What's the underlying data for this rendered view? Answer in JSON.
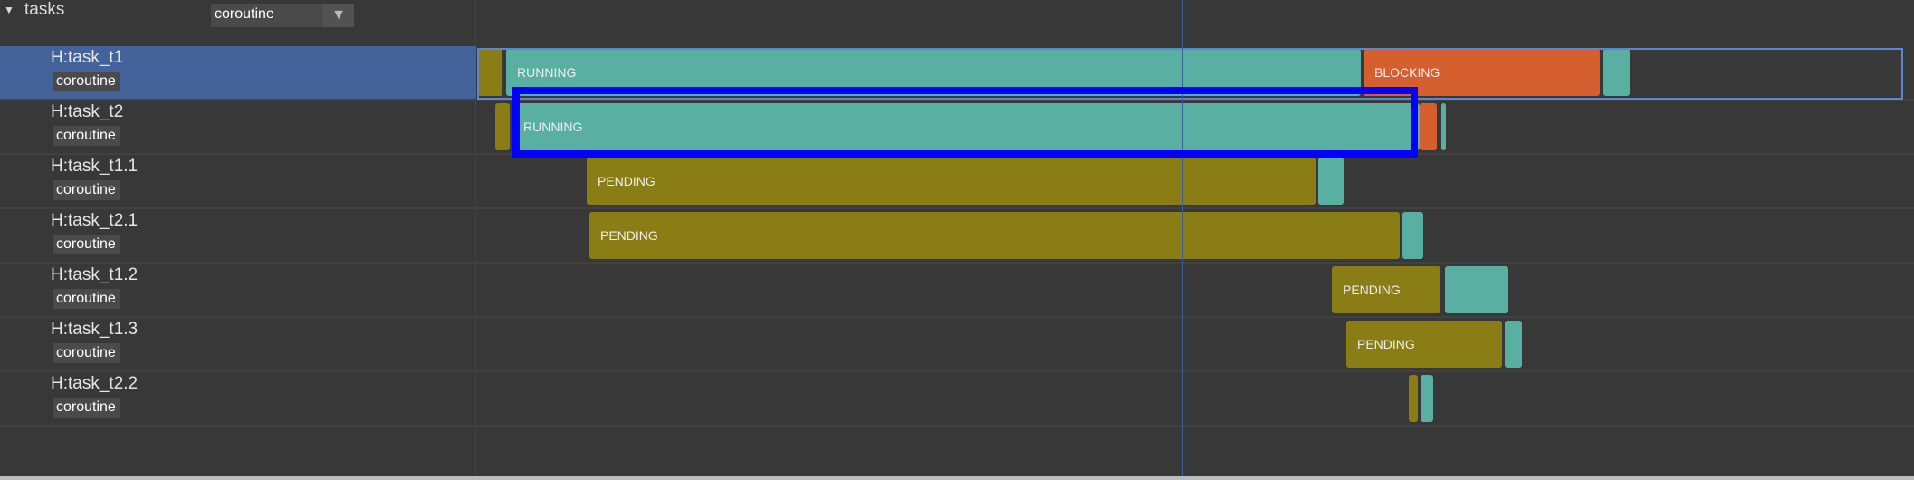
{
  "header": {
    "title": "tasks",
    "collapse_icon": "triangle-down-icon",
    "dropdown_value": "coroutine"
  },
  "colors": {
    "PENDING": "#8b7d16",
    "RUNNING": "#5aafa3",
    "BLOCKING": "#d65f2f",
    "selected_row": "#44639a",
    "highlight_box": "#0000ff",
    "cursor_line": "#3c5f9c"
  },
  "rows": [
    {
      "name": "H:task_t1",
      "tag": "coroutine",
      "selected": true,
      "segments": [
        {
          "state": "PENDING",
          "label": "",
          "x0": 528,
          "x1": 555
        },
        {
          "state": "RUNNING",
          "label": "RUNNING",
          "x0": 559,
          "x1": 1503
        },
        {
          "state": "BLOCKING",
          "label": "BLOCKING",
          "x0": 1506,
          "x1": 1767
        },
        {
          "state": "RUNNING",
          "label": "",
          "x0": 1771,
          "x1": 1800
        }
      ]
    },
    {
      "name": "H:task_t2",
      "tag": "coroutine",
      "segments": [
        {
          "state": "PENDING",
          "label": "",
          "x0": 547,
          "x1": 563
        },
        {
          "state": "RUNNING",
          "label": "RUNNING",
          "x0": 566,
          "x1": 1568
        },
        {
          "state": "BLOCKING",
          "label": "",
          "x0": 1568,
          "x1": 1587
        },
        {
          "state": "RUNNING",
          "label": "",
          "x0": 1592,
          "x1": 1597
        }
      ]
    },
    {
      "name": "H:task_t1.1",
      "tag": "coroutine",
      "segments": [
        {
          "state": "PENDING",
          "label": "PENDING",
          "x0": 648,
          "x1": 1453
        },
        {
          "state": "RUNNING",
          "label": "",
          "x0": 1456,
          "x1": 1484
        }
      ]
    },
    {
      "name": "H:task_t2.1",
      "tag": "coroutine",
      "segments": [
        {
          "state": "PENDING",
          "label": "PENDING",
          "x0": 651,
          "x1": 1546
        },
        {
          "state": "RUNNING",
          "label": "",
          "x0": 1549,
          "x1": 1572
        }
      ]
    },
    {
      "name": "H:task_t1.2",
      "tag": "coroutine",
      "segments": [
        {
          "state": "PENDING",
          "label": "PENDING",
          "x0": 1471,
          "x1": 1591
        },
        {
          "state": "RUNNING",
          "label": "",
          "x0": 1596,
          "x1": 1666
        }
      ]
    },
    {
      "name": "H:task_t1.3",
      "tag": "coroutine",
      "segments": [
        {
          "state": "PENDING",
          "label": "PENDING",
          "x0": 1487,
          "x1": 1659
        },
        {
          "state": "RUNNING",
          "label": "",
          "x0": 1662,
          "x1": 1681
        }
      ]
    },
    {
      "name": "H:task_t2.2",
      "tag": "coroutine",
      "segments": [
        {
          "state": "PENDING",
          "label": "",
          "x0": 1556,
          "x1": 1566
        },
        {
          "state": "RUNNING",
          "label": "",
          "x0": 1569,
          "x1": 1583
        }
      ]
    }
  ]
}
